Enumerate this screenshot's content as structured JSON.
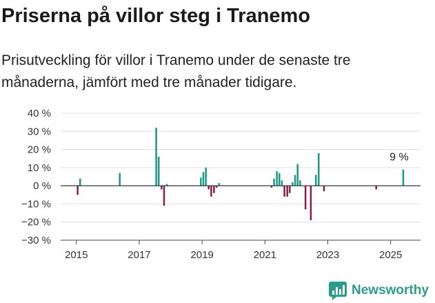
{
  "header": {
    "title": "Priserna på villor steg i Tranemo",
    "subtitle": "Prisutveckling för villor i Tranemo under de senaste tre månaderna, jämfört med tre månader tidigare."
  },
  "brand": {
    "name": "Newsworthy",
    "icon": "newsworthy-chart-icon",
    "color": "#2a9c8c"
  },
  "colors": {
    "positive": "#1a9a8a",
    "negative": "#8c1a4b",
    "grid": "#dddddd",
    "zero_line": "#333333"
  },
  "chart_data": {
    "type": "bar",
    "x_unit": "year",
    "xlim": [
      2014.5,
      2025.95
    ],
    "ylim": [
      -30,
      40
    ],
    "y_ticks": [
      40,
      30,
      20,
      10,
      0,
      -10,
      -20,
      -30
    ],
    "y_tick_labels": [
      "40 %",
      "30 %",
      "20 %",
      "10 %",
      "0 %",
      "−10 %",
      "−20 %",
      "−30 %"
    ],
    "x_ticks": [
      2015,
      2017,
      2019,
      2021,
      2023,
      2025
    ],
    "x_tick_labels": [
      "2015",
      "2017",
      "2019",
      "2021",
      "2023",
      "2025"
    ],
    "grid": true,
    "bar_width_years": 0.055,
    "annotation": {
      "text": "9 %",
      "x": 2025.4,
      "y": 9
    },
    "points": [
      {
        "x": 2015.04,
        "y": -5
      },
      {
        "x": 2015.12,
        "y": 4
      },
      {
        "x": 2016.38,
        "y": 7
      },
      {
        "x": 2017.54,
        "y": 32
      },
      {
        "x": 2017.62,
        "y": 16
      },
      {
        "x": 2017.71,
        "y": -2
      },
      {
        "x": 2017.79,
        "y": -11
      },
      {
        "x": 2017.88,
        "y": 1
      },
      {
        "x": 2018.96,
        "y": 4.5
      },
      {
        "x": 2019.04,
        "y": 7.5
      },
      {
        "x": 2019.12,
        "y": 10
      },
      {
        "x": 2019.21,
        "y": -2
      },
      {
        "x": 2019.29,
        "y": -6
      },
      {
        "x": 2019.38,
        "y": -4
      },
      {
        "x": 2019.46,
        "y": -1
      },
      {
        "x": 2019.54,
        "y": 1.5
      },
      {
        "x": 2021.21,
        "y": -1
      },
      {
        "x": 2021.29,
        "y": 4
      },
      {
        "x": 2021.38,
        "y": 8
      },
      {
        "x": 2021.46,
        "y": 7
      },
      {
        "x": 2021.54,
        "y": 3
      },
      {
        "x": 2021.62,
        "y": -6
      },
      {
        "x": 2021.71,
        "y": -6
      },
      {
        "x": 2021.79,
        "y": -4
      },
      {
        "x": 2021.88,
        "y": 2
      },
      {
        "x": 2021.96,
        "y": 6
      },
      {
        "x": 2022.04,
        "y": 12
      },
      {
        "x": 2022.12,
        "y": 3
      },
      {
        "x": 2022.29,
        "y": -13
      },
      {
        "x": 2022.46,
        "y": -19
      },
      {
        "x": 2022.62,
        "y": 6
      },
      {
        "x": 2022.71,
        "y": 18
      },
      {
        "x": 2022.88,
        "y": -3
      },
      {
        "x": 2024.54,
        "y": -2
      },
      {
        "x": 2025.4,
        "y": 9
      }
    ]
  }
}
